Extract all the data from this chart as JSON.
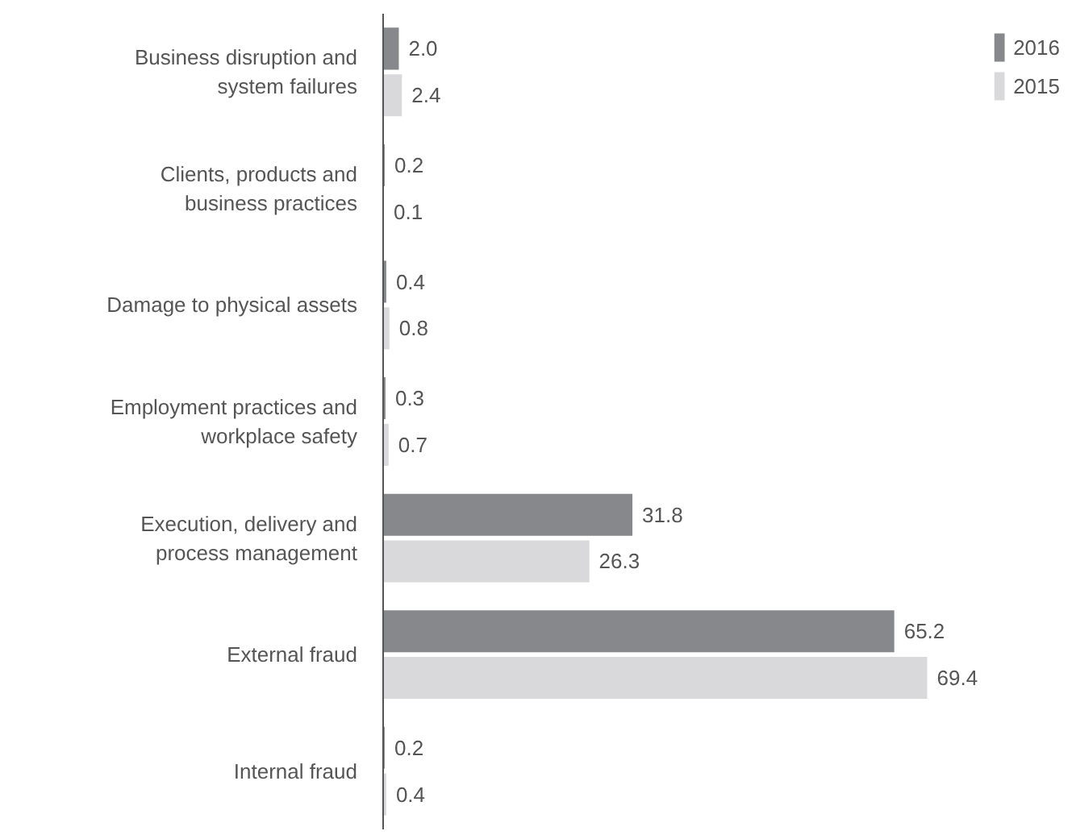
{
  "chart_data": {
    "type": "bar",
    "orientation": "horizontal",
    "categories": [
      "Business disruption and system failures",
      "Clients, products and business practices",
      "Damage to physical assets",
      "Employment practices and workplace safety",
      "Execution, delivery and process management",
      "External fraud",
      "Internal fraud"
    ],
    "series": [
      {
        "name": "2016",
        "color": "#87888c",
        "values": [
          2.0,
          0.2,
          0.4,
          0.3,
          31.8,
          65.2,
          0.2
        ],
        "value_labels": [
          "2.0",
          "0.2",
          "0.4",
          "0.3",
          "31.8",
          "65.2",
          "0.2"
        ]
      },
      {
        "name": "2015",
        "color": "#d9d9db",
        "values": [
          2.4,
          0.1,
          0.8,
          0.7,
          26.3,
          69.4,
          0.4
        ],
        "value_labels": [
          "2.4",
          "0.1",
          "0.8",
          "0.7",
          "26.3",
          "69.4",
          "0.4"
        ]
      }
    ],
    "legend": "top right",
    "tick_labels": "y"
  }
}
